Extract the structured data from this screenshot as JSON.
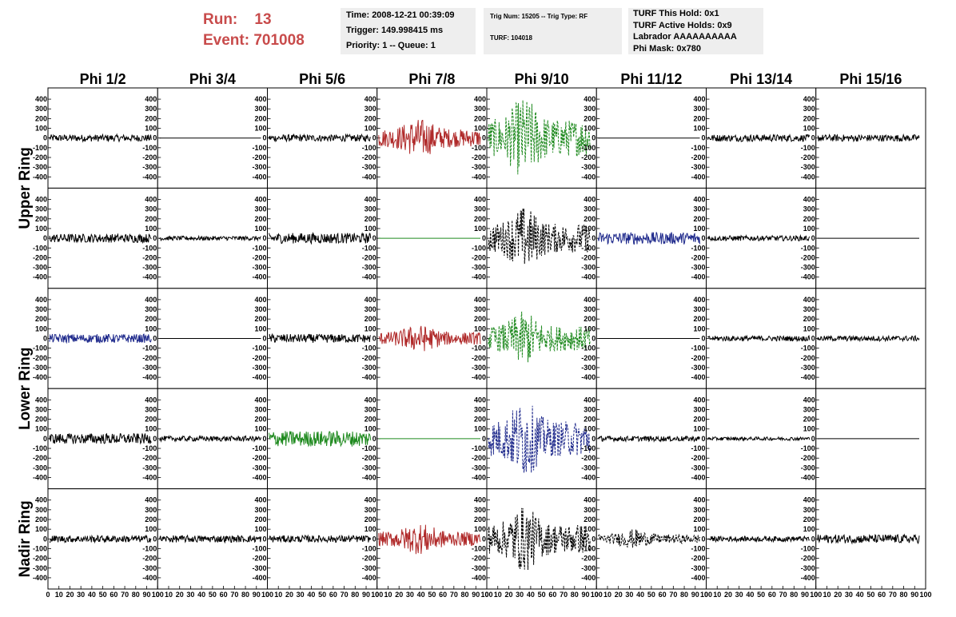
{
  "header": {
    "run_label": "Run:",
    "run_value": "13",
    "event_label": "Event:",
    "event_value": "701008",
    "info1": [
      "Time: 2008-12-21 00:39:09",
      "Trigger: 149.998415 ms",
      "Priority: 1 -- Queue: 1"
    ],
    "info2": [
      "Trig Num: 15205 -- Trig Type: RF",
      "TURF: 104018"
    ],
    "info3": [
      "TURF This Hold: 0x1",
      "TURF Active Holds: 0x9",
      "Labrador AAAAAAAAAA",
      "Phi Mask: 0x780"
    ]
  },
  "colors": {
    "red": "#b02a2a",
    "green": "#1f8a1f",
    "blue": "#1f2a8c",
    "black": "#000000",
    "run": "#c84b4b"
  },
  "chart_data": {
    "type": "line",
    "columns": [
      "Phi 1/2",
      "Phi 3/4",
      "Phi 5/6",
      "Phi 7/8",
      "Phi 9/10",
      "Phi 11/12",
      "Phi 13/14",
      "Phi 15/16"
    ],
    "rings": [
      "Upper Ring",
      "Lower Ring",
      "Nadir Ring"
    ],
    "ylim": [
      -450,
      450
    ],
    "xlim": [
      0,
      100
    ],
    "y_ticks": [
      400,
      300,
      200,
      100,
      0,
      -100,
      -200,
      -300,
      -400
    ],
    "x_tick_labels": [
      "0",
      "10",
      "20",
      "30",
      "40",
      "50",
      "60",
      "70",
      "80",
      "90",
      "100"
    ],
    "panels": [
      [
        {
          "color": "black",
          "amp": 40,
          "style": "noise"
        },
        {
          "color": "black",
          "amp": 0,
          "style": "flat"
        },
        {
          "color": "black",
          "amp": 40,
          "style": "noise"
        },
        {
          "color": "red",
          "amp": 200,
          "style": "burst"
        },
        {
          "color": "green",
          "amp": 420,
          "style": "dashed"
        },
        {
          "color": "black",
          "amp": 0,
          "style": "flat"
        },
        {
          "color": "black",
          "amp": 40,
          "style": "noise"
        },
        {
          "color": "black",
          "amp": 40,
          "style": "noise"
        }
      ],
      [
        {
          "color": "black",
          "amp": 50,
          "style": "noise"
        },
        {
          "color": "black",
          "amp": 25,
          "style": "noise"
        },
        {
          "color": "black",
          "amp": 60,
          "style": "noise"
        },
        {
          "color": "green",
          "amp": 0,
          "style": "flat"
        },
        {
          "color": "black",
          "amp": 330,
          "style": "dashed"
        },
        {
          "color": "blue",
          "amp": 70,
          "style": "noise"
        },
        {
          "color": "black",
          "amp": 30,
          "style": "noise"
        },
        {
          "color": "black",
          "amp": 0,
          "style": "flat"
        }
      ],
      [
        {
          "color": "blue",
          "amp": 50,
          "style": "noise"
        },
        {
          "color": "black",
          "amp": 0,
          "style": "flat"
        },
        {
          "color": "black",
          "amp": 50,
          "style": "noise"
        },
        {
          "color": "red",
          "amp": 140,
          "style": "burst"
        },
        {
          "color": "green",
          "amp": 280,
          "style": "dashed"
        },
        {
          "color": "black",
          "amp": 0,
          "style": "flat"
        },
        {
          "color": "black",
          "amp": 30,
          "style": "noise"
        },
        {
          "color": "black",
          "amp": 30,
          "style": "noise"
        }
      ],
      [
        {
          "color": "black",
          "amp": 60,
          "style": "noise"
        },
        {
          "color": "black",
          "amp": 30,
          "style": "noise"
        },
        {
          "color": "green",
          "amp": 90,
          "style": "noise"
        },
        {
          "color": "green",
          "amp": 0,
          "style": "flat"
        },
        {
          "color": "blue",
          "amp": 400,
          "style": "dashed"
        },
        {
          "color": "black",
          "amp": 30,
          "style": "noise"
        },
        {
          "color": "black",
          "amp": 20,
          "style": "noise"
        },
        {
          "color": "black",
          "amp": 0,
          "style": "flat"
        }
      ],
      [
        {
          "color": "black",
          "amp": 40,
          "style": "noise"
        },
        {
          "color": "black",
          "amp": 40,
          "style": "noise"
        },
        {
          "color": "black",
          "amp": 40,
          "style": "noise"
        },
        {
          "color": "red",
          "amp": 160,
          "style": "burst"
        },
        {
          "color": "black",
          "amp": 340,
          "style": "dashed"
        },
        {
          "color": "black",
          "amp": 100,
          "style": "dashed"
        },
        {
          "color": "black",
          "amp": 30,
          "style": "noise"
        },
        {
          "color": "black",
          "amp": 50,
          "style": "noise"
        }
      ]
    ]
  }
}
